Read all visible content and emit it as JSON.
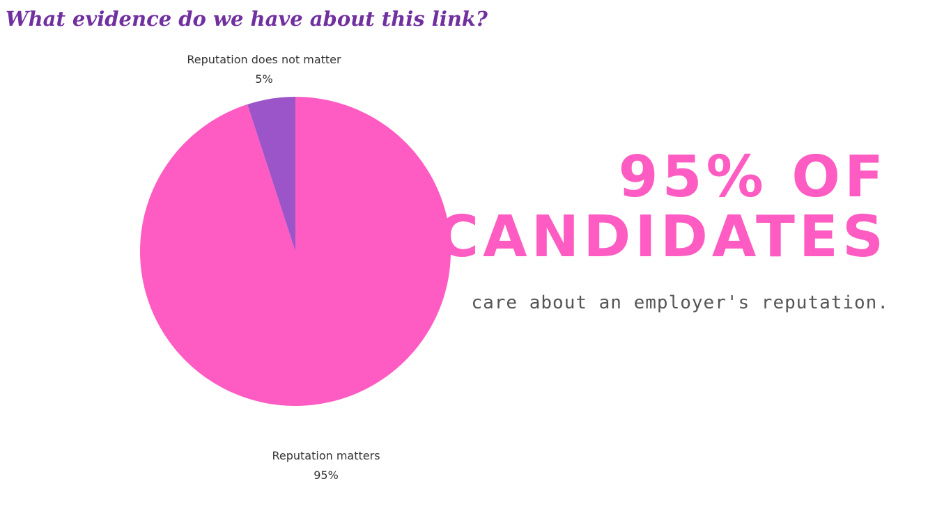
{
  "heading": "What evidence do we have about this link?",
  "chart_data": {
    "type": "pie",
    "slices": [
      {
        "label": "Reputation matters",
        "value": 95,
        "value_label": "95%",
        "color": "#ff5cc3"
      },
      {
        "label": "Reputation does not matter",
        "value": 5,
        "value_label": "5%",
        "color": "#9b55c8"
      }
    ],
    "start": "12 o'clock",
    "direction": "clockwise"
  },
  "callout": {
    "line1": "95% OF",
    "line2": "CANDIDATES",
    "subtitle": "care about an employer's reputation.",
    "color": "#ff5cc3"
  }
}
